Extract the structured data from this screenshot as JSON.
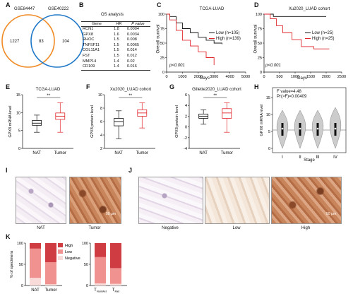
{
  "panels": {
    "A": {
      "label": "A",
      "left_set": "GSE84447",
      "right_set": "GSE40222",
      "left_only": "1227",
      "overlap": "83",
      "right_only": "104"
    },
    "B": {
      "label": "B",
      "title": "OS analysis",
      "headers": [
        "Gene",
        "HR",
        "P value"
      ],
      "rows": [
        [
          "RCN1",
          "1.8",
          "0.0004"
        ],
        [
          "GPX8",
          "1.6",
          "0.0034"
        ],
        [
          "RHOC",
          "1.5",
          "0.008"
        ],
        [
          "TNFSF11",
          "1.5",
          "0.0065"
        ],
        [
          "COL11A1",
          "1.5",
          "0.014"
        ],
        [
          "FST",
          "1.5",
          "0.012"
        ],
        [
          "MMP14",
          "1.4",
          "0.02"
        ],
        [
          "CD109",
          "1.4",
          "0.016"
        ]
      ]
    },
    "C": {
      "label": "C",
      "title": "TCGA-LUAD",
      "ylabel": "Overall survival",
      "xlabel": "Days",
      "pval": "p<0.001",
      "legend_low": "Low (n=105)",
      "legend_high": "High (n=139)",
      "yticks": [
        "100",
        "75",
        "50",
        "25",
        "0"
      ],
      "xticks": [
        "0",
        "1000",
        "2000",
        "3000",
        "4000",
        "5000"
      ]
    },
    "D": {
      "label": "D",
      "title": "Xu2020_LUAD cohort",
      "ylabel": "Overall survival",
      "xlabel": "Days",
      "pval": "p<0.001",
      "legend_low": "Low (n=25)",
      "legend_high": "High (n=25)",
      "yticks": [
        "100",
        "75",
        "50",
        "25",
        "0"
      ],
      "xticks": [
        "0",
        "500",
        "1000",
        "1500",
        "2000",
        "2500"
      ]
    },
    "E": {
      "label": "E",
      "title": "TCGA-LUAD",
      "ylabel": "GPX8 mRNA level",
      "yticks": [
        "15",
        "10",
        "5",
        "0"
      ],
      "cats": [
        "NAT",
        "Tumor"
      ],
      "sig": "**"
    },
    "F": {
      "label": "F",
      "title": "Xu2020_LUAD cohort",
      "ylabel": "GPX8 protein level",
      "yticks": [
        "10",
        "8",
        "6",
        "4",
        "2"
      ],
      "cats": [
        "NAT",
        "Tumor"
      ],
      "sig": "**"
    },
    "G": {
      "label": "G",
      "title": "Gillette2020_LUAD cohort",
      "ylabel": "GPX8 protein level",
      "yticks": [
        "6",
        "4",
        "2",
        "0",
        "-2",
        "-4"
      ],
      "cats": [
        "NAT",
        "Tumor"
      ],
      "sig": "**"
    },
    "H": {
      "label": "H",
      "fvalue": "F value=4.48",
      "pr": "Pr(>F)=0.00409",
      "ylabel": "GPX8 mRNA level",
      "xlabel": "Stage",
      "yticks": [
        "15",
        "10",
        "5",
        "0"
      ],
      "cats": [
        "I",
        "II",
        "III",
        "IV"
      ]
    },
    "I": {
      "label": "I",
      "captions": [
        "NAT",
        "Tumor"
      ],
      "scale": "50 μm"
    },
    "J": {
      "label": "J",
      "captions": [
        "Negative",
        "Low",
        "High"
      ],
      "scale": "50 μm"
    },
    "K": {
      "label": "K",
      "ylabel": "% of specimens",
      "yticks": [
        "100",
        "50",
        "0"
      ],
      "legend": [
        "High",
        "Low",
        "Negative"
      ],
      "left_cats": [
        "NAT",
        "Tumor"
      ],
      "right_cats": [
        "T",
        "T"
      ],
      "right_subs": [
        "NonMet",
        "Met"
      ]
    }
  },
  "colors": {
    "orange": "#f08a24",
    "blue": "#1f78c8",
    "red": "#e0262b",
    "black": "#111111",
    "k_high": "#cf3d42",
    "k_low": "#f0928f",
    "k_neg": "#f9dbd9"
  },
  "chart_data": [
    {
      "type": "bar",
      "id": "K-left",
      "categories": [
        "NAT",
        "Tumor"
      ],
      "series": [
        {
          "name": "Negative",
          "values": [
            18,
            3
          ]
        },
        {
          "name": "Low",
          "values": [
            69,
            52
          ]
        },
        {
          "name": "High",
          "values": [
            13,
            45
          ]
        }
      ],
      "ylabel": "% of specimens",
      "ylim": [
        0,
        100
      ]
    },
    {
      "type": "bar",
      "id": "K-right",
      "categories": [
        "T NonMet",
        "T Met"
      ],
      "series": [
        {
          "name": "Negative",
          "values": [
            5,
            4
          ]
        },
        {
          "name": "Low",
          "values": [
            62,
            37
          ]
        },
        {
          "name": "High",
          "values": [
            33,
            59
          ]
        }
      ],
      "ylabel": "% of specimens",
      "ylim": [
        0,
        100
      ]
    },
    {
      "type": "line",
      "id": "C",
      "series": [
        {
          "name": "Low (n=105)",
          "x": [
            0,
            200,
            600,
            1000,
            1500,
            2000,
            2500,
            3000,
            3500
          ],
          "y": [
            100,
            96,
            85,
            75,
            68,
            60,
            55,
            50,
            48
          ]
        },
        {
          "name": "High (n=139)",
          "x": [
            0,
            200,
            600,
            1000,
            1500,
            2000,
            2500,
            3000
          ],
          "y": [
            100,
            90,
            72,
            55,
            45,
            35,
            25,
            12
          ]
        }
      ],
      "xlim": [
        0,
        5000
      ],
      "ylim": [
        0,
        100
      ]
    },
    {
      "type": "line",
      "id": "D",
      "series": [
        {
          "name": "Low (n=25)",
          "x": [
            0,
            300,
            700,
            1200,
            2000
          ],
          "y": [
            100,
            96,
            96,
            96,
            96
          ]
        },
        {
          "name": "High (n=25)",
          "x": [
            0,
            200,
            400,
            600,
            900,
            1200,
            1600,
            2100
          ],
          "y": [
            100,
            92,
            80,
            68,
            56,
            44,
            40,
            40
          ]
        }
      ],
      "xlim": [
        0,
        2500
      ],
      "ylim": [
        0,
        100
      ]
    }
  ]
}
